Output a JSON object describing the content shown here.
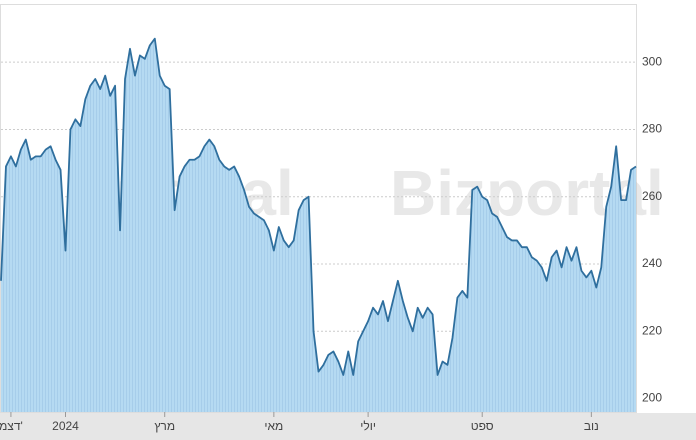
{
  "chart_data": {
    "type": "area",
    "watermark": "Bizportal",
    "color": "#2f6f9e",
    "fill": "#b5daf2",
    "grid": true,
    "ylim": [
      196,
      317
    ],
    "yticks": [
      200,
      220,
      240,
      260,
      280,
      300
    ],
    "categories": [
      null,
      null,
      "דצמ'",
      null,
      null,
      null,
      null,
      null,
      null,
      null,
      null,
      null,
      null,
      "2024",
      null,
      null,
      null,
      null,
      null,
      null,
      null,
      null,
      null,
      null,
      null,
      null,
      null,
      null,
      null,
      null,
      null,
      null,
      null,
      "מרץ",
      null,
      null,
      null,
      null,
      null,
      null,
      null,
      null,
      null,
      null,
      null,
      null,
      null,
      null,
      null,
      null,
      null,
      null,
      null,
      null,
      null,
      "מאי",
      null,
      null,
      null,
      null,
      null,
      null,
      null,
      null,
      null,
      null,
      null,
      null,
      null,
      null,
      null,
      null,
      null,
      null,
      "יולי",
      null,
      null,
      null,
      null,
      null,
      null,
      null,
      null,
      null,
      null,
      null,
      null,
      null,
      null,
      null,
      null,
      null,
      null,
      null,
      null,
      null,
      null,
      "ספט",
      null,
      null,
      null,
      null,
      null,
      null,
      null,
      null,
      null,
      null,
      null,
      null,
      null,
      null,
      null,
      null,
      null,
      null,
      null,
      null,
      null,
      "נוב",
      null,
      null,
      null,
      null,
      null,
      null,
      null,
      null,
      null
    ],
    "values": [
      235,
      269,
      272,
      269,
      274,
      277,
      271,
      272,
      272,
      274,
      275,
      271,
      268,
      244,
      280,
      283,
      281,
      289,
      293,
      295,
      292,
      296,
      290,
      293,
      250,
      295,
      304,
      296,
      302,
      301,
      305,
      307,
      296,
      293,
      292,
      256,
      266,
      269,
      271,
      271,
      272,
      275,
      277,
      275,
      271,
      269,
      268,
      269,
      266,
      262,
      257,
      255,
      254,
      253,
      250,
      244,
      251,
      247,
      245,
      247,
      256,
      259,
      260,
      220,
      208,
      210,
      213,
      214,
      211,
      207,
      214,
      207,
      217,
      220,
      223,
      227,
      225,
      229,
      223,
      229,
      235,
      229,
      224,
      220,
      227,
      224,
      227,
      225,
      207,
      211,
      210,
      218,
      230,
      232,
      230,
      262,
      263,
      260,
      259,
      255,
      254,
      251,
      248,
      247,
      247,
      245,
      245,
      242,
      241,
      239,
      235,
      242,
      244,
      239,
      245,
      241,
      245,
      238,
      236,
      238,
      233,
      239,
      257,
      263,
      275,
      259,
      259,
      268,
      269
    ]
  }
}
